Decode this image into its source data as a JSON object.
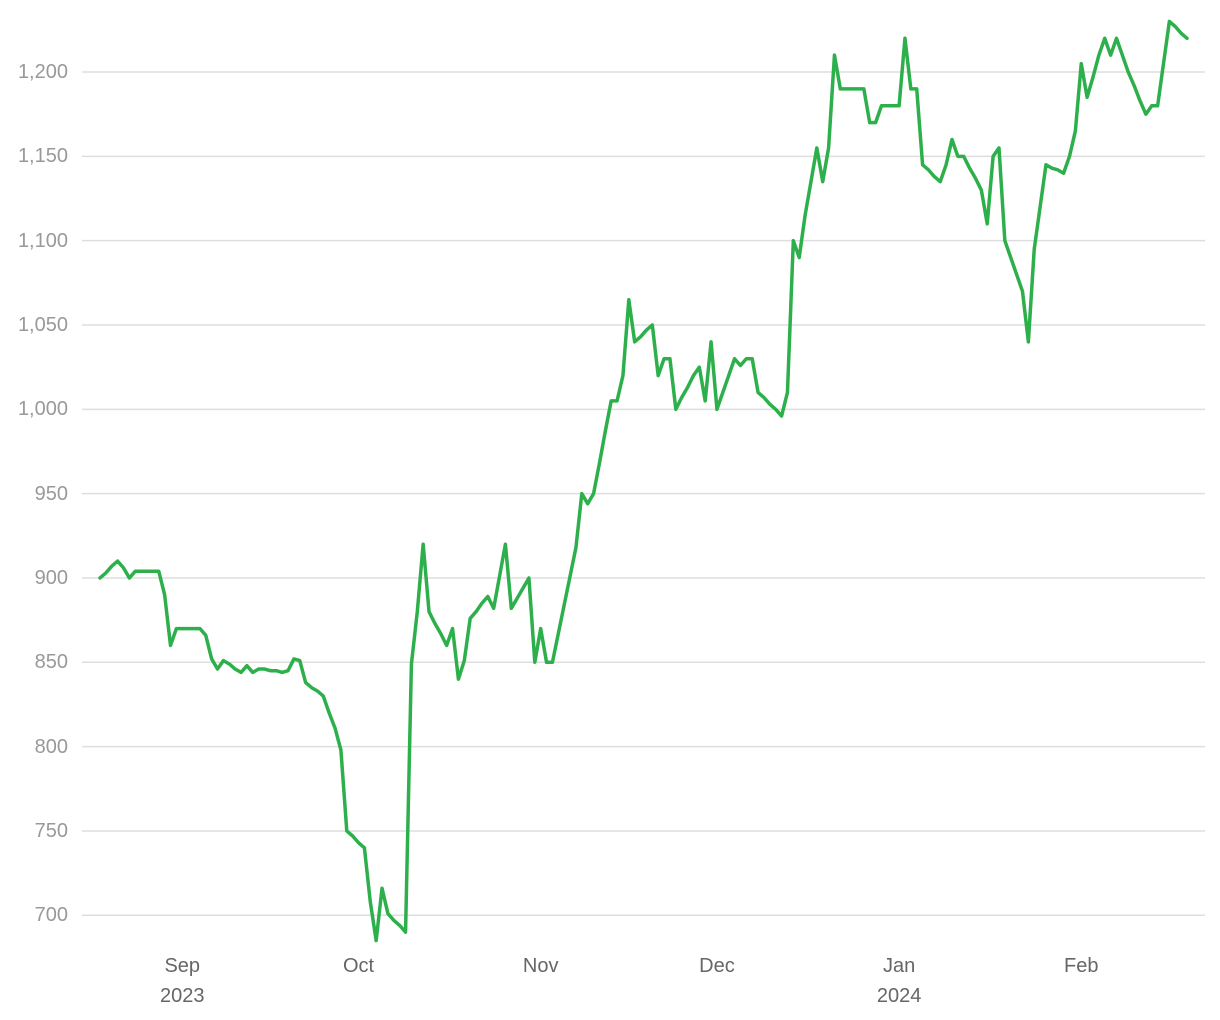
{
  "chart_data": {
    "type": "line",
    "categories": [
      null,
      null,
      null,
      null,
      null,
      null,
      null,
      null,
      null,
      null,
      null,
      null,
      null,
      null,
      "Sep 2023",
      null,
      null,
      null,
      null,
      null,
      null,
      null,
      null,
      null,
      null,
      null,
      null,
      null,
      null,
      null,
      null,
      null,
      null,
      null,
      null,
      null,
      null,
      null,
      null,
      null,
      null,
      null,
      null,
      null,
      "Oct",
      null,
      null,
      null,
      null,
      null,
      null,
      null,
      null,
      null,
      null,
      null,
      null,
      null,
      null,
      null,
      null,
      null,
      null,
      null,
      null,
      null,
      null,
      null,
      null,
      null,
      null,
      null,
      null,
      null,
      null,
      "Nov",
      null,
      null,
      null,
      null,
      null,
      null,
      null,
      null,
      null,
      null,
      null,
      null,
      null,
      null,
      null,
      null,
      null,
      null,
      null,
      null,
      null,
      null,
      null,
      null,
      null,
      null,
      null,
      null,
      null,
      "Dec",
      null,
      null,
      null,
      null,
      null,
      null,
      null,
      null,
      null,
      null,
      null,
      null,
      null,
      null,
      null,
      null,
      null,
      null,
      null,
      null,
      null,
      null,
      null,
      null,
      null,
      null,
      null,
      null,
      null,
      null,
      "Jan 2024",
      null,
      null,
      null,
      null,
      null,
      null,
      null,
      null,
      null,
      null,
      null,
      null,
      null,
      null,
      null,
      null,
      null,
      null,
      null,
      null,
      null,
      null,
      null,
      null,
      null,
      null,
      null,
      null,
      null,
      null,
      "Feb",
      null,
      null,
      null,
      null,
      null,
      null,
      null,
      null,
      null,
      null,
      null,
      null,
      null,
      null,
      null,
      null,
      null,
      null
    ],
    "values": [
      900,
      903,
      907,
      910,
      906,
      900,
      904,
      904,
      904,
      904,
      904,
      890,
      860,
      870,
      870,
      870,
      870,
      870,
      866,
      852,
      846,
      851,
      849,
      846,
      844,
      848,
      844,
      846,
      846,
      845,
      845,
      844,
      845,
      852,
      851,
      838,
      835,
      833,
      830,
      820,
      811,
      798,
      750,
      747,
      743,
      740,
      708,
      685,
      716,
      701,
      697,
      694,
      690,
      849,
      880,
      920,
      880,
      873,
      867,
      860,
      870,
      840,
      851,
      876,
      880,
      885,
      889,
      882,
      901,
      920,
      882,
      888,
      894,
      900,
      850,
      870,
      850,
      850,
      867,
      884,
      901,
      918,
      950,
      944,
      950,
      968,
      987,
      1005,
      1005,
      1020,
      1065,
      1040,
      1043,
      1047,
      1050,
      1020,
      1030,
      1030,
      1000,
      1007,
      1013,
      1020,
      1025,
      1005,
      1040,
      1000,
      1010,
      1020,
      1030,
      1026,
      1030,
      1030,
      1010,
      1007,
      1003,
      1000,
      996,
      1010,
      1100,
      1090,
      1115,
      1135,
      1155,
      1135,
      1155,
      1210,
      1190,
      1190,
      1190,
      1190,
      1190,
      1170,
      1170,
      1180,
      1180,
      1180,
      1180,
      1220,
      1190,
      1190,
      1145,
      1142,
      1138,
      1135,
      1145,
      1160,
      1150,
      1150,
      1143,
      1137,
      1130,
      1110,
      1150,
      1155,
      1100,
      1090,
      1080,
      1070,
      1040,
      1095,
      1120,
      1145,
      1143,
      1142,
      1140,
      1150,
      1165,
      1205,
      1185,
      1197,
      1210,
      1220,
      1210,
      1220,
      1210,
      1200,
      1192,
      1183,
      1175,
      1180,
      1180,
      1205,
      1230,
      1227,
      1223,
      1220
    ],
    "color": "#2db04b",
    "ylim": [
      680,
      1235
    ],
    "yticks": [
      700,
      750,
      800,
      850,
      900,
      950,
      {
        "value": 1000,
        "label": "1,000"
      },
      {
        "value": 1050,
        "label": "1,050"
      },
      {
        "value": 1100,
        "label": "1,100"
      },
      {
        "value": 1150,
        "label": "1,150"
      },
      {
        "value": 1200,
        "label": "1,200"
      }
    ],
    "grid": true
  }
}
